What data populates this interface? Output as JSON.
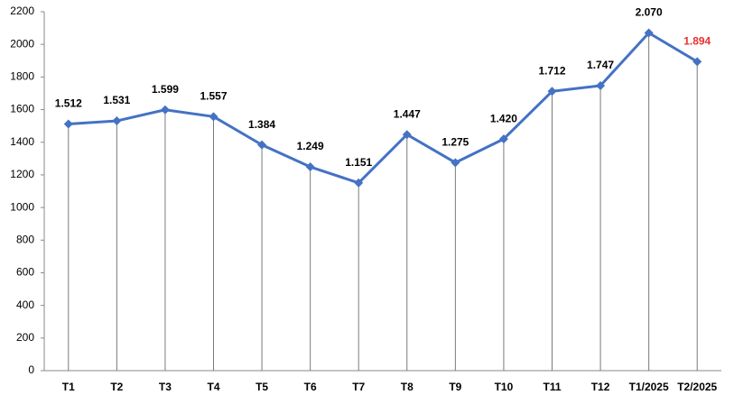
{
  "chart_data": {
    "type": "line",
    "categories": [
      "T1",
      "T2",
      "T3",
      "T4",
      "T5",
      "T6",
      "T7",
      "T8",
      "T9",
      "T10",
      "T11",
      "T12",
      "T1/2025",
      "T2/2025"
    ],
    "series": [
      {
        "color": "#4472c4",
        "values": [
          1512,
          1531,
          1599,
          1557,
          1384,
          1249,
          1151,
          1447,
          1275,
          1420,
          1712,
          1747,
          2070,
          1894
        ],
        "value_labels": [
          "1.512",
          "1.531",
          "1.599",
          "1.557",
          "1.384",
          "1.249",
          "1.151",
          "1.447",
          "1.275",
          "1.420",
          "1.712",
          "1.747",
          "2.070",
          "1.894"
        ],
        "value_label_colors": [
          "#000000",
          "#000000",
          "#000000",
          "#000000",
          "#000000",
          "#000000",
          "#000000",
          "#000000",
          "#000000",
          "#000000",
          "#000000",
          "#000000",
          "#000000",
          "#e8312f"
        ]
      }
    ],
    "ylim": [
      0,
      2200
    ],
    "yticks": [
      0,
      200,
      400,
      600,
      800,
      1000,
      1200,
      1400,
      1600,
      1800,
      2000,
      2200
    ],
    "drop_lines": true
  }
}
